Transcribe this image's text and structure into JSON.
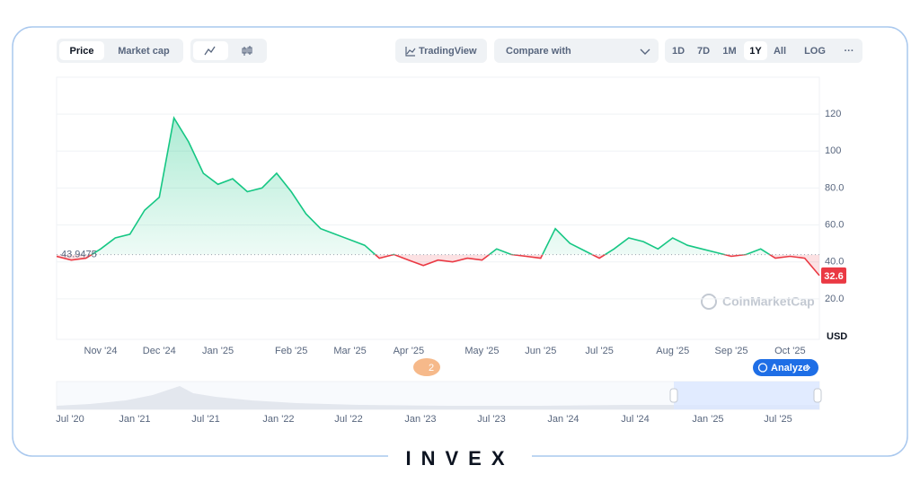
{
  "toolbar": {
    "view_tabs": [
      "Price",
      "Market cap"
    ],
    "tradingview": "TradingView",
    "compare": "Compare with",
    "ranges": [
      "1D",
      "7D",
      "1M",
      "1Y",
      "All",
      "LOG"
    ],
    "more": "···"
  },
  "chart_data": {
    "type": "line",
    "categories": [
      null,
      null,
      null,
      "Nov '24",
      null,
      null,
      null,
      "Dec '24",
      null,
      null,
      null,
      "Jan '25",
      null,
      null,
      null,
      null,
      "Feb '25",
      null,
      null,
      null,
      "Mar '25",
      null,
      null,
      null,
      "Apr '25",
      null,
      null,
      null,
      null,
      "May '25",
      null,
      null,
      null,
      "Jun '25",
      null,
      null,
      null,
      "Jul '25",
      null,
      null,
      null,
      null,
      "Aug '25",
      null,
      null,
      null,
      "Sep '25",
      null,
      null,
      null,
      "Oct '25",
      null,
      null
    ],
    "values": [
      43,
      41,
      42,
      47,
      53,
      55,
      68,
      75,
      118,
      105,
      88,
      82,
      85,
      78,
      80,
      88,
      78,
      66,
      58,
      55,
      52,
      49,
      42,
      44,
      41,
      38,
      41,
      40,
      42,
      41,
      47,
      44,
      43,
      42,
      58,
      50,
      46,
      42,
      47,
      53,
      51,
      47,
      53,
      49,
      47,
      45,
      43,
      44,
      47,
      42,
      43,
      42,
      32.6
    ],
    "ylim": [
      0,
      140
    ],
    "yticks": [
      {
        "value": 20,
        "label": "20.0"
      },
      {
        "value": 40,
        "label": "40.0"
      },
      {
        "value": 60,
        "label": "60.0"
      },
      {
        "value": 80,
        "label": "80.0"
      },
      100,
      120
    ],
    "grid": true,
    "reference_value": 43.9475,
    "color_up": "#16c784",
    "color_down": "#ea3943",
    "unit": "USD",
    "watermark": "CoinMarketCap"
  },
  "navigator": {
    "labels": [
      "Jul '20",
      "Jan '21",
      "Jul '21",
      "Jan '22",
      "Jul '22",
      "Jan '23",
      "Jul '23",
      "Jan '24",
      "Jul '24",
      "Jan '25",
      "Jul '25"
    ]
  },
  "badge": "2",
  "analyze": "Analyze",
  "logo": "INVEX"
}
